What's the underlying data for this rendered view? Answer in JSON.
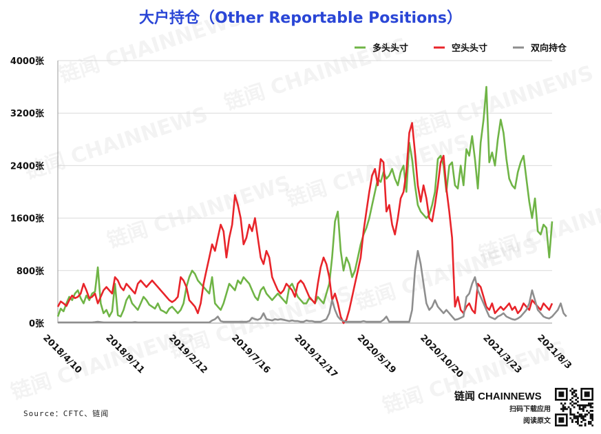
{
  "chart_data": {
    "type": "line",
    "title": "大户持仓（Other Reportable Positions）",
    "y_ticks": [
      "0张",
      "800张",
      "1600张",
      "2400张",
      "3200张",
      "4000张"
    ],
    "y_tick_values": [
      0,
      800,
      1600,
      2400,
      3200,
      4000
    ],
    "ylim": [
      0,
      4000
    ],
    "x_ticks": [
      "2018/4/10",
      "2018/9/11",
      "2019/2/12",
      "2019/7/16",
      "2019/12/17",
      "2020/5/19",
      "2020/10/20",
      "2021/3/23",
      "2021/8/3"
    ],
    "x_tick_index": [
      0,
      22,
      44,
      66,
      88,
      110,
      132,
      154,
      173
    ],
    "grid": true,
    "legend_position": "top-right",
    "series": [
      {
        "name": "多头头寸",
        "color": "#6fb446",
        "values": [
          100,
          220,
          180,
          300,
          400,
          350,
          450,
          500,
          380,
          300,
          420,
          350,
          450,
          480,
          850,
          300,
          150,
          200,
          100,
          180,
          600,
          120,
          100,
          200,
          350,
          420,
          300,
          250,
          200,
          300,
          400,
          350,
          280,
          250,
          220,
          300,
          200,
          180,
          150,
          220,
          250,
          200,
          150,
          200,
          300,
          550,
          700,
          800,
          750,
          650,
          600,
          550,
          500,
          450,
          700,
          300,
          250,
          200,
          300,
          450,
          600,
          550,
          500,
          650,
          600,
          700,
          650,
          600,
          500,
          400,
          350,
          500,
          550,
          450,
          400,
          350,
          400,
          450,
          400,
          350,
          300,
          550,
          600,
          500,
          400,
          350,
          300,
          300,
          380,
          350,
          300,
          400,
          350,
          300,
          450,
          600,
          1000,
          1550,
          1700,
          1100,
          800,
          1000,
          900,
          700,
          800,
          1000,
          1200,
          1350,
          1450,
          1600,
          1800,
          2000,
          2200,
          2150,
          2300,
          2200,
          2250,
          2350,
          2200,
          2100,
          2300,
          2400,
          2000,
          2750,
          2500,
          2100,
          1800,
          1700,
          1650,
          1600,
          1650,
          1800,
          2000,
          2500,
          2550,
          2400,
          2000,
          2400,
          2450,
          2100,
          2050,
          2400,
          2100,
          2650,
          2550,
          2850,
          2500,
          2050,
          2750,
          3100,
          3600,
          2450,
          2600,
          2400,
          2800,
          3100,
          2900,
          2500,
          2200,
          2100,
          2050,
          2300,
          2450,
          2550,
          2200,
          1850,
          1600,
          1900,
          1400,
          1350,
          1500,
          1450,
          1000,
          1550
        ]
      },
      {
        "name": "空头头寸",
        "color": "#e8242a",
        "values": [
          250,
          330,
          300,
          260,
          350,
          420,
          380,
          400,
          450,
          600,
          500,
          380,
          400,
          450,
          300,
          400,
          500,
          550,
          500,
          450,
          700,
          650,
          550,
          500,
          600,
          550,
          500,
          450,
          600,
          650,
          600,
          550,
          600,
          650,
          600,
          550,
          500,
          450,
          400,
          350,
          320,
          350,
          400,
          700,
          650,
          550,
          350,
          300,
          250,
          150,
          300,
          600,
          800,
          1000,
          1200,
          1100,
          1300,
          1500,
          1400,
          1000,
          1300,
          1500,
          1950,
          1800,
          1600,
          1200,
          1300,
          1500,
          1400,
          1600,
          1300,
          1000,
          900,
          1100,
          1000,
          700,
          600,
          500,
          450,
          500,
          600,
          550,
          500,
          400,
          600,
          650,
          600,
          500,
          400,
          350,
          300,
          600,
          850,
          1000,
          900,
          700,
          350,
          450,
          300,
          100,
          0,
          50,
          200,
          400,
          600,
          800,
          1000,
          1400,
          1700,
          2000,
          2250,
          2350,
          2100,
          2500,
          2450,
          1700,
          1800,
          1500,
          1350,
          1600,
          1900,
          2000,
          2300,
          2900,
          3050,
          2600,
          2100,
          1850,
          2100,
          1900,
          1600,
          1550,
          1800,
          2100,
          2450,
          2550,
          2050,
          1700,
          1300,
          250,
          400,
          200,
          150,
          250,
          300,
          200,
          150,
          600,
          550,
          400,
          250,
          200,
          300,
          150,
          200,
          250,
          200,
          250,
          300,
          200,
          250,
          150,
          200,
          300,
          250,
          200,
          350,
          300,
          250,
          200,
          300,
          250,
          200,
          300
        ]
      },
      {
        "name": "双向持仓",
        "color": "#8e8e8e",
        "values": [
          10,
          10,
          10,
          10,
          10,
          10,
          10,
          10,
          10,
          10,
          10,
          10,
          10,
          15,
          20,
          15,
          10,
          10,
          10,
          10,
          10,
          10,
          10,
          10,
          10,
          10,
          10,
          15,
          10,
          10,
          10,
          10,
          10,
          10,
          10,
          10,
          10,
          10,
          10,
          10,
          10,
          10,
          10,
          10,
          10,
          10,
          10,
          10,
          10,
          10,
          10,
          10,
          10,
          10,
          40,
          60,
          100,
          30,
          20,
          20,
          20,
          20,
          20,
          20,
          20,
          20,
          20,
          30,
          80,
          60,
          50,
          70,
          150,
          60,
          50,
          40,
          60,
          50,
          60,
          50,
          40,
          30,
          40,
          30,
          30,
          20,
          20,
          40,
          30,
          30,
          20,
          20,
          20,
          40,
          60,
          150,
          350,
          200,
          100,
          50,
          30,
          20,
          20,
          20,
          20,
          20,
          20,
          30,
          20,
          20,
          20,
          20,
          20,
          20,
          50,
          100,
          20,
          20,
          20,
          20,
          20,
          20,
          20,
          20,
          200,
          800,
          1100,
          900,
          600,
          300,
          200,
          250,
          350,
          250,
          200,
          150,
          200,
          150,
          100,
          50,
          60,
          80,
          100,
          400,
          450,
          600,
          700,
          500,
          400,
          300,
          200,
          100,
          80,
          60,
          100,
          120,
          150,
          100,
          80,
          60,
          50,
          70,
          100,
          150,
          200,
          300,
          500,
          350,
          200,
          150,
          100,
          80,
          70,
          100,
          150,
          200,
          300,
          150,
          100
        ]
      }
    ]
  },
  "source_text": "Source：CFTC、链闻",
  "watermark_text": "链闻 CHAINNEWS",
  "brand": {
    "name": "链闻 CHAINNEWS",
    "sub1": "扫码下载应用",
    "sub2": "阅读原文"
  }
}
